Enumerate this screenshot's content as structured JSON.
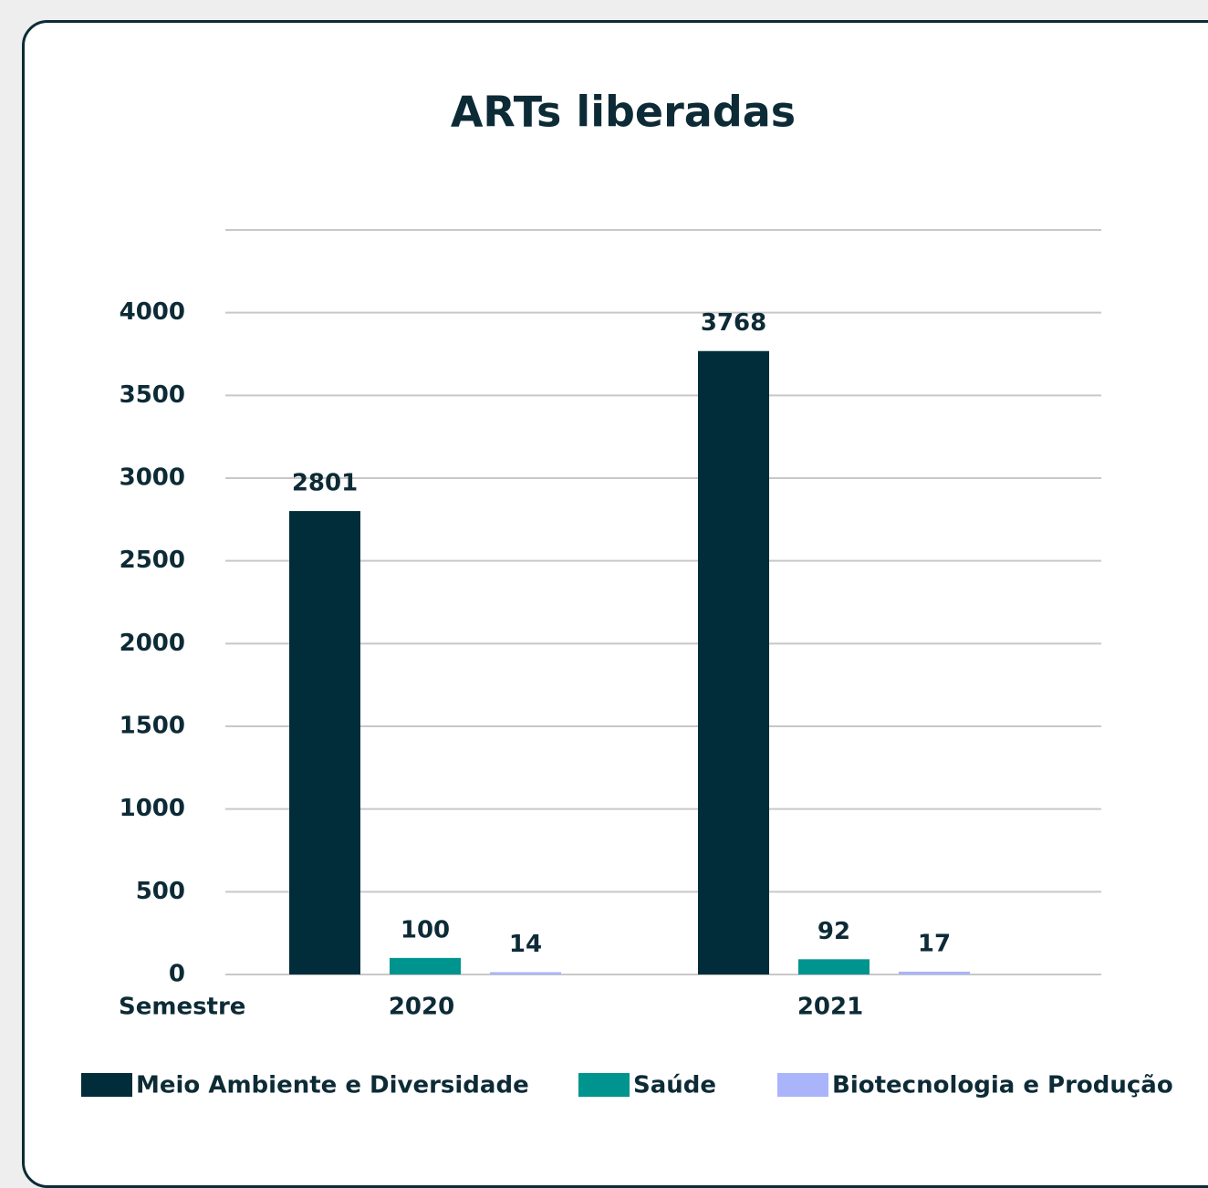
{
  "chart_data": {
    "type": "bar",
    "title": "ARTs liberadas",
    "x_label": "Semestre",
    "categories": [
      "2020",
      "2021"
    ],
    "series": [
      {
        "name": "Meio Ambiente e Diversidade",
        "color": "#012d3a",
        "values": [
          2801,
          3768
        ]
      },
      {
        "name": "Saúde",
        "color": "#00948f",
        "values": [
          100,
          92
        ]
      },
      {
        "name": "Biotecnologia e Produção",
        "color": "#aab4fb",
        "values": [
          14,
          17
        ]
      }
    ],
    "ylim": [
      0,
      4500
    ],
    "yticks": [
      0,
      500,
      1000,
      1500,
      2000,
      2500,
      3000,
      3500,
      4000
    ],
    "grid": true,
    "legend": "bottom"
  }
}
